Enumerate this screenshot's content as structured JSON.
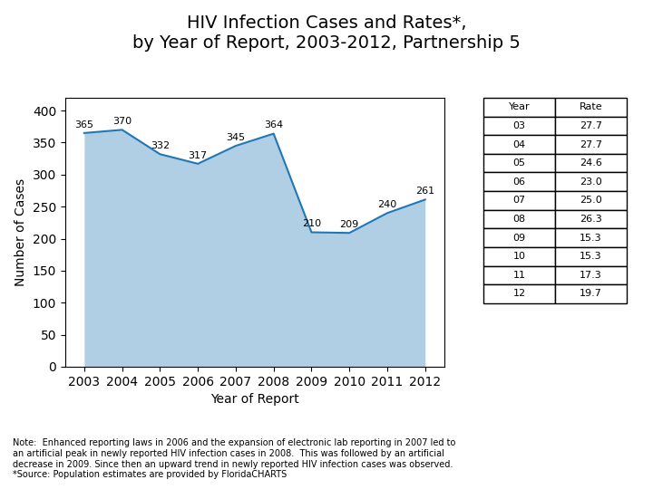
{
  "chart_data": [
    {
      "type": "area",
      "title": "HIV Infection Cases and Rates*,\nby Year of Report, 2003-2012, Partnership 5",
      "x_label": "Year of Report",
      "y_label": "Number of Cases",
      "x": [
        2003,
        2004,
        2005,
        2006,
        2007,
        2008,
        2009,
        2010,
        2011,
        2012
      ],
      "values": [
        365,
        370,
        332,
        317,
        345,
        364,
        210,
        209,
        240,
        261
      ],
      "xlim": [
        2002.5,
        2012.5
      ],
      "xticks": [
        2003,
        2004,
        2005,
        2006,
        2007,
        2008,
        2009,
        2010,
        2011,
        2012
      ],
      "ylim": [
        0,
        420
      ],
      "yticks": [
        0,
        50,
        100,
        150,
        200,
        250,
        300,
        350,
        400
      ],
      "data_labels": true,
      "grid": false,
      "annotations": [
        "Note:  Enhanced reporting laws in 2006 and the expansion of electronic lab reporting in 2007 led to\nan artificial peak in newly reported HIV infection cases in 2008.  This was followed by an artificial\ndecrease in 2009. Since then an upward trend in newly reported HIV infection cases was observed.\n*Source: Population estimates are provided by FloridaCHARTS"
      ]
    },
    {
      "type": "table",
      "columns": [
        "Year",
        "Rate"
      ],
      "rows": [
        [
          "03",
          "27.7"
        ],
        [
          "04",
          "27.7"
        ],
        [
          "05",
          "24.6"
        ],
        [
          "06",
          "23.0"
        ],
        [
          "07",
          "25.0"
        ],
        [
          "08",
          "26.3"
        ],
        [
          "09",
          "15.3"
        ],
        [
          "10",
          "15.3"
        ],
        [
          "11",
          "17.3"
        ],
        [
          "12",
          "19.7"
        ]
      ]
    }
  ]
}
